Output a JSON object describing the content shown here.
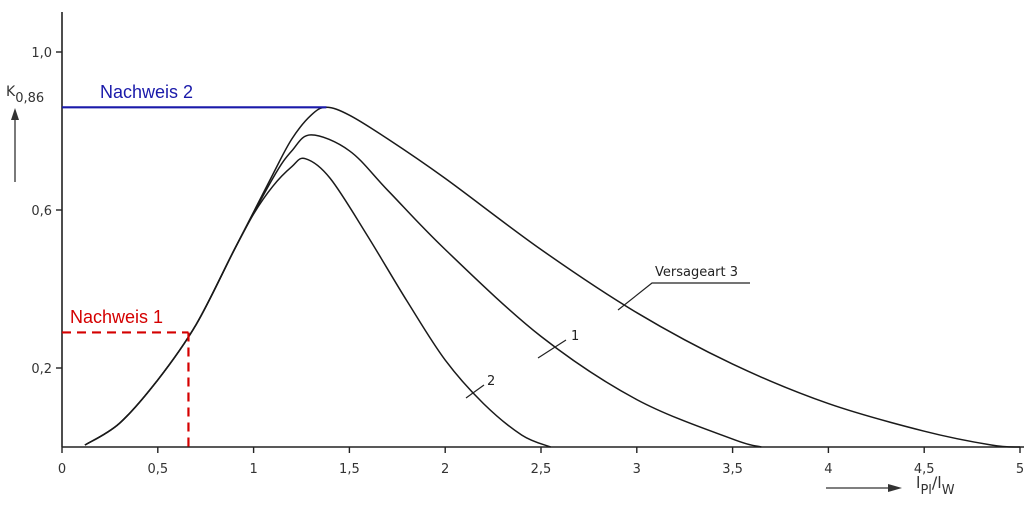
{
  "chart_data": {
    "type": "line",
    "title": "",
    "xlim": [
      0,
      5
    ],
    "ylim": [
      0,
      1.05
    ],
    "x_ticks": [
      "0",
      "0,5",
      "1",
      "1,5",
      "2",
      "2,5",
      "3",
      "3,5",
      "4",
      "4,5",
      "5"
    ],
    "x_tick_values": [
      0,
      0.5,
      1,
      1.5,
      2,
      2.5,
      3,
      3.5,
      4,
      4.5,
      5
    ],
    "y_ticks": [
      "0,2",
      "0,6",
      "1,0"
    ],
    "y_tick_values": [
      0.2,
      0.6,
      1.0
    ],
    "xlabel": {
      "main": "l",
      "sub1": "Pl",
      "slash": "/l",
      "sub2": "W"
    },
    "ylabel": {
      "main": "K",
      "sub": "0,86"
    },
    "grid": false,
    "series": [
      {
        "name": "Versageart 3",
        "label": "Versageart 3",
        "x": [
          0.12,
          0.3,
          0.5,
          0.7,
          0.9,
          1.1,
          1.2,
          1.3,
          1.38,
          1.5,
          1.7,
          2.0,
          2.5,
          3.0,
          3.5,
          4.0,
          4.5,
          4.85,
          5.0
        ],
        "y": [
          0.005,
          0.06,
          0.17,
          0.31,
          0.5,
          0.69,
          0.78,
          0.84,
          0.86,
          0.84,
          0.78,
          0.68,
          0.5,
          0.34,
          0.21,
          0.11,
          0.04,
          0.005,
          0.0
        ]
      },
      {
        "name": "1",
        "label": "1",
        "x": [
          0.12,
          0.3,
          0.5,
          0.7,
          0.9,
          1.1,
          1.2,
          1.3,
          1.5,
          1.7,
          2.0,
          2.5,
          3.0,
          3.5,
          3.65
        ],
        "y": [
          0.005,
          0.06,
          0.17,
          0.31,
          0.5,
          0.68,
          0.75,
          0.79,
          0.75,
          0.65,
          0.5,
          0.28,
          0.12,
          0.02,
          0.0
        ]
      },
      {
        "name": "2",
        "label": "2",
        "x": [
          0.12,
          0.3,
          0.5,
          0.7,
          0.9,
          1.0,
          1.1,
          1.2,
          1.27,
          1.4,
          1.6,
          1.8,
          2.0,
          2.2,
          2.4,
          2.55
        ],
        "y": [
          0.005,
          0.06,
          0.17,
          0.31,
          0.5,
          0.59,
          0.66,
          0.71,
          0.73,
          0.68,
          0.53,
          0.37,
          0.22,
          0.11,
          0.03,
          0.0
        ]
      }
    ],
    "annotations": [
      {
        "text": "Nachweis 1",
        "color": "#d40000",
        "style": "dashed",
        "x": 0.66,
        "y": 0.29
      },
      {
        "text": "Nachweis 2",
        "color": "#1a1aaa",
        "style": "solid",
        "x": 1.38,
        "y": 0.86
      }
    ]
  }
}
